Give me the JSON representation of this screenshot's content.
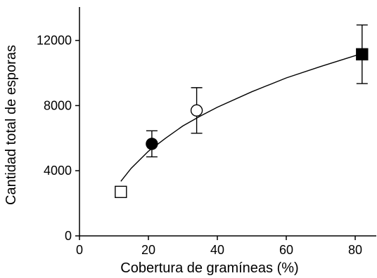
{
  "chart_data": {
    "type": "scatter",
    "xlabel": "Cobertura de gramíneas (%)",
    "ylabel": "Cantidad total de esporas",
    "xlim": [
      0,
      85
    ],
    "ylim": [
      0,
      14000
    ],
    "xticks": [
      0,
      20,
      40,
      60,
      80
    ],
    "yticks": [
      0,
      4000,
      8000,
      12000
    ],
    "xtick_labels": [
      "0",
      "20",
      "40",
      "60",
      "80"
    ],
    "ytick_labels": [
      "0",
      "4000",
      "8000",
      "12000"
    ],
    "points": [
      {
        "x": 12,
        "y": 2700,
        "marker": "square",
        "fill": "open",
        "err": 0
      },
      {
        "x": 21,
        "y": 5650,
        "marker": "circle",
        "fill": "filled",
        "err": 800
      },
      {
        "x": 34,
        "y": 7700,
        "marker": "circle",
        "fill": "open",
        "err": 1400
      },
      {
        "x": 82,
        "y": 11150,
        "marker": "square",
        "fill": "filled",
        "err": 1800
      }
    ],
    "fit_curve": {
      "x": [
        12,
        15,
        20,
        25,
        30,
        35,
        40,
        50,
        60,
        70,
        82
      ],
      "y": [
        3350,
        4150,
        5200,
        6000,
        6750,
        7350,
        7900,
        8850,
        9700,
        10400,
        11200
      ]
    },
    "grid": false,
    "legend": "none"
  }
}
